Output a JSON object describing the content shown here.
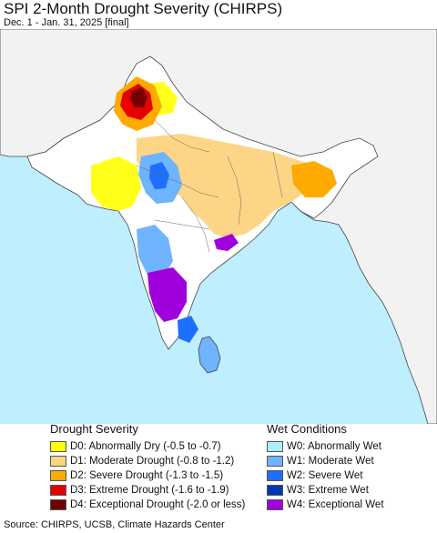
{
  "header": {
    "title": "SPI 2-Month Drought Severity (CHIRPS)",
    "subtitle": "Dec. 1 - Jan. 31, 2025 [final]"
  },
  "colors": {
    "ocean": "#bfeeff",
    "land": "#f2f2f2",
    "border": "#444444"
  },
  "legend": {
    "drought": {
      "title": "Drought Severity",
      "items": [
        {
          "label": "D0: Abnormally Dry (-0.5 to -0.7)",
          "color": "#ffff00"
        },
        {
          "label": "D1: Moderate Drought (-0.8 to -1.2)",
          "color": "#fcd37f"
        },
        {
          "label": "D2: Severe Drought (-1.3 to -1.5)",
          "color": "#ffaa00"
        },
        {
          "label": "D3: Extreme Drought (-1.6 to -1.9)",
          "color": "#e60000"
        },
        {
          "label": "D4: Exceptional Drought (-2.0 or less)",
          "color": "#730000"
        }
      ]
    },
    "wet": {
      "title": "Wet Conditions",
      "items": [
        {
          "label": "W0: Abnormally Wet",
          "color": "#aaf0ff"
        },
        {
          "label": "W1: Moderate Wet",
          "color": "#6fb4ff"
        },
        {
          "label": "W2: Severe Wet",
          "color": "#1e6fff"
        },
        {
          "label": "W3: Extreme Wet",
          "color": "#0038b4"
        },
        {
          "label": "W4: Exceptional Wet",
          "color": "#a000dc"
        }
      ]
    }
  },
  "footer": {
    "source": "Source: CHIRPS, UCSB, Climate Hazards Center"
  }
}
